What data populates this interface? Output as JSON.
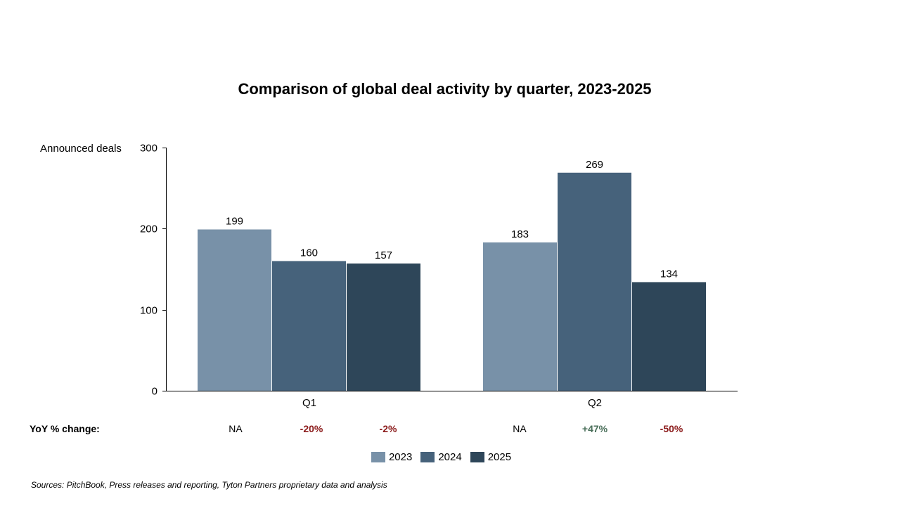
{
  "chart_data": {
    "type": "bar",
    "title": "Comparison of global deal activity by quarter, 2023-2025",
    "ylabel": "Announced deals",
    "xlabel": "",
    "ylim": [
      0,
      300
    ],
    "yticks": [
      "0",
      "100",
      "200",
      "300"
    ],
    "categories": [
      "Q1",
      "Q2"
    ],
    "series": [
      {
        "name": "2023",
        "color": "#7891a8",
        "values": [
          199,
          183
        ]
      },
      {
        "name": "2024",
        "color": "#46627b",
        "values": [
          160,
          269
        ]
      },
      {
        "name": "2025",
        "color": "#2e4659",
        "values": [
          157,
          134
        ]
      }
    ],
    "legend_position": "bottom",
    "grid": false
  },
  "yoy": {
    "title": "YoY % change:",
    "values": [
      {
        "text": "NA",
        "kind": "na"
      },
      {
        "text": "-20%",
        "kind": "neg"
      },
      {
        "text": "-2%",
        "kind": "neg"
      },
      {
        "text": "NA",
        "kind": "na"
      },
      {
        "text": "+47%",
        "kind": "pos"
      },
      {
        "text": "-50%",
        "kind": "neg"
      }
    ]
  },
  "source": "Sources: PitchBook, Press releases and reporting, Tyton Partners proprietary data and analysis"
}
